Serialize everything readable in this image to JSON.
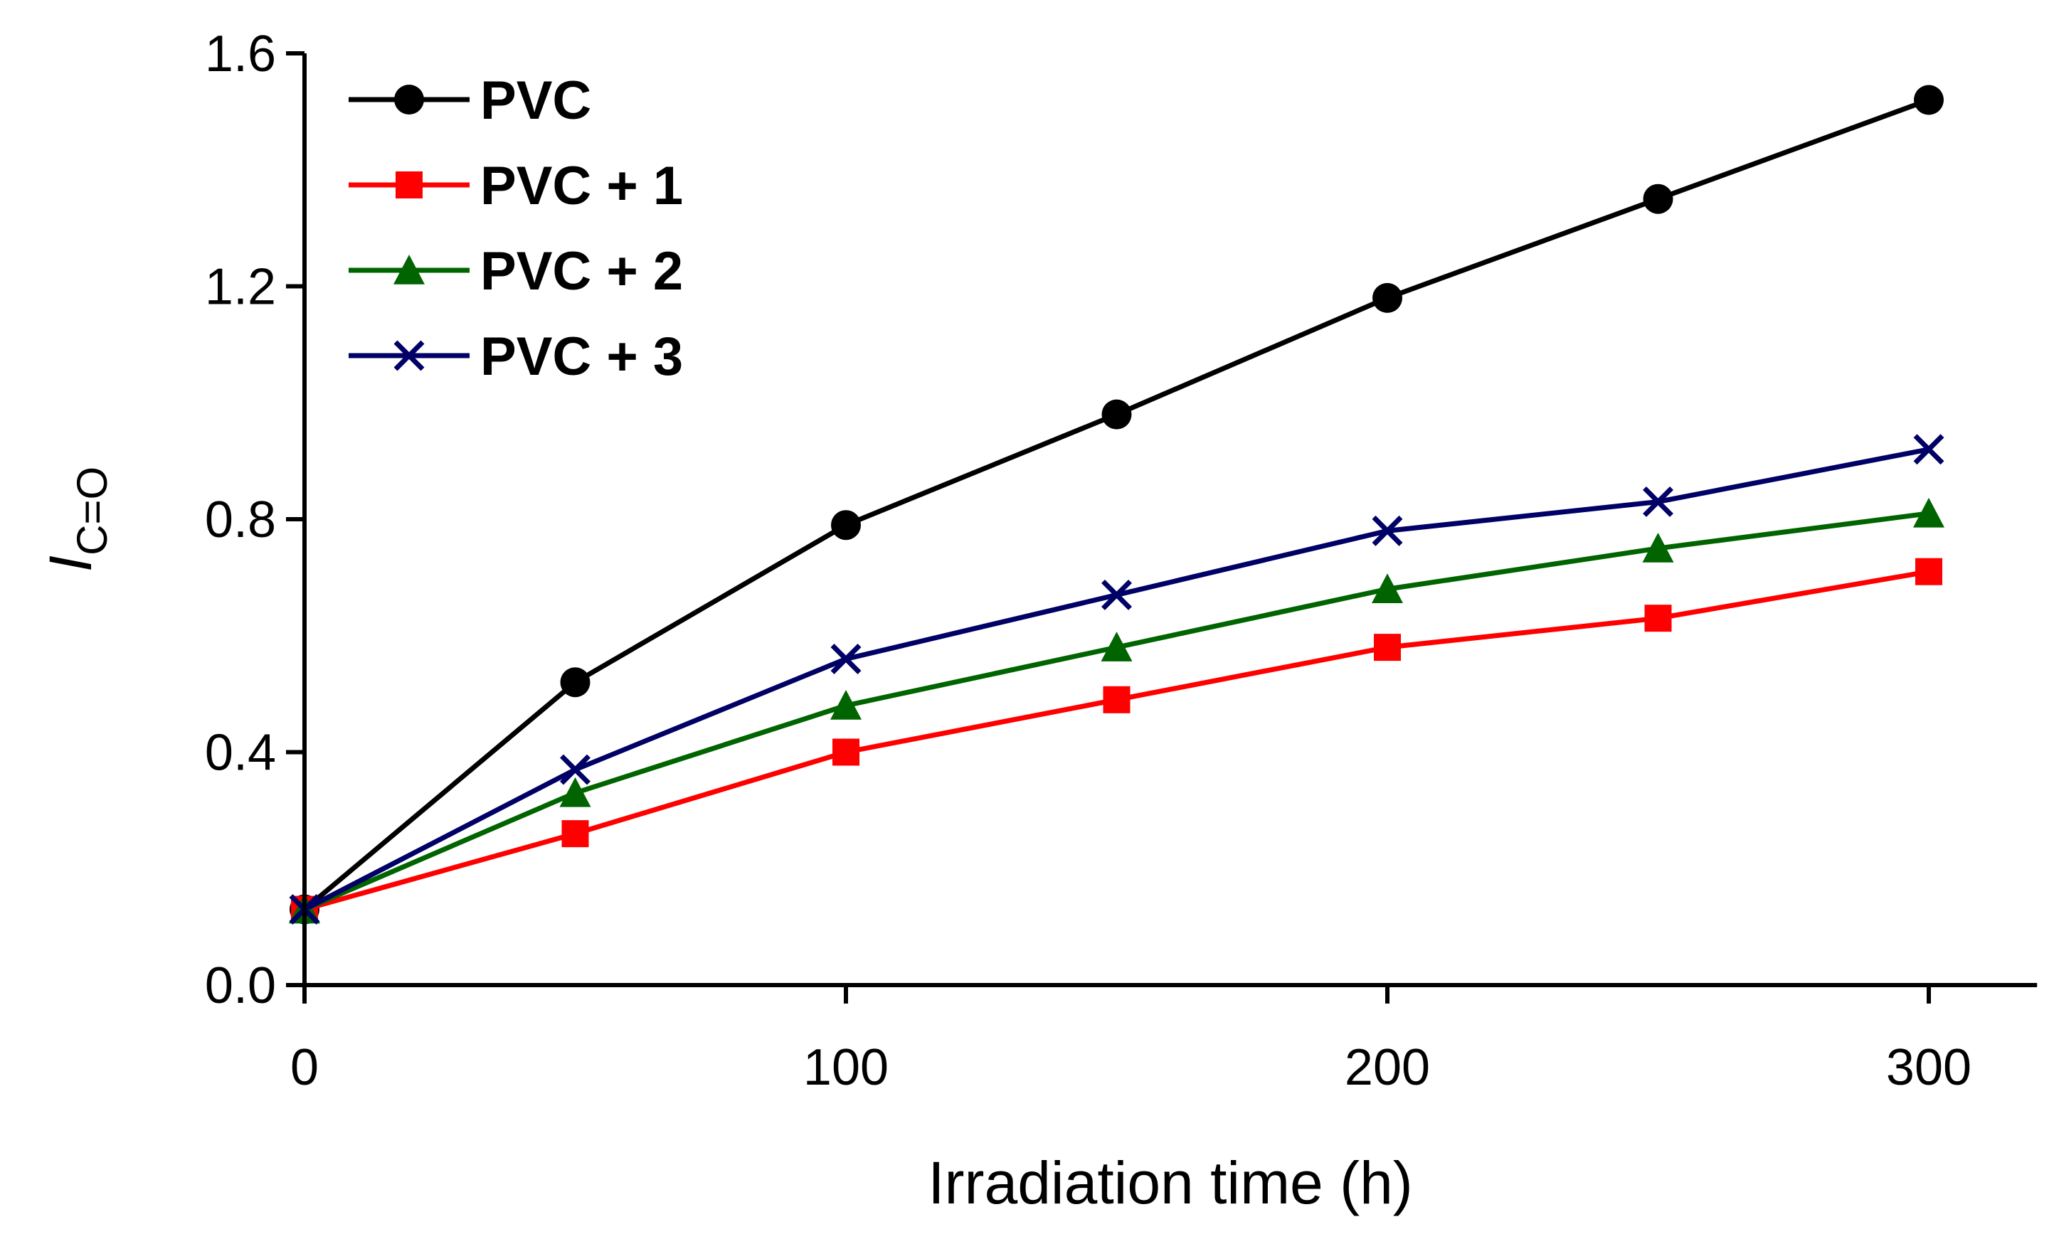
{
  "chart_data": {
    "type": "line",
    "title": "",
    "xlabel": "Irradiation time (h)",
    "ylabel_main": "I",
    "ylabel_sub": "C=O",
    "xlim": [
      0,
      320
    ],
    "ylim": [
      0,
      1.6
    ],
    "x_ticks": [
      0,
      100,
      200,
      300
    ],
    "x_tick_labels": [
      "0",
      "100",
      "200",
      "300"
    ],
    "y_ticks": [
      0,
      0.4,
      0.8,
      1.2,
      1.6
    ],
    "y_tick_labels": [
      "0.0",
      "0.4",
      "0.8",
      "1.2",
      "1.6"
    ],
    "grid": false,
    "legend_position": "top-left",
    "x": [
      0,
      50,
      100,
      150,
      200,
      250,
      300
    ],
    "series": [
      {
        "name": "PVC",
        "color": "#000000",
        "marker": "circle",
        "values": [
          0.13,
          0.52,
          0.79,
          0.98,
          1.18,
          1.35,
          1.52
        ]
      },
      {
        "name": "PVC + 1",
        "color": "#ff0000",
        "marker": "square",
        "values": [
          0.13,
          0.26,
          0.4,
          0.49,
          0.58,
          0.63,
          0.71
        ]
      },
      {
        "name": "PVC + 2",
        "color": "#006400",
        "marker": "triangle",
        "values": [
          0.13,
          0.33,
          0.48,
          0.58,
          0.68,
          0.75,
          0.81
        ]
      },
      {
        "name": "PVC + 3",
        "color": "#000066",
        "marker": "x",
        "values": [
          0.13,
          0.37,
          0.56,
          0.67,
          0.78,
          0.83,
          0.92
        ]
      }
    ]
  }
}
